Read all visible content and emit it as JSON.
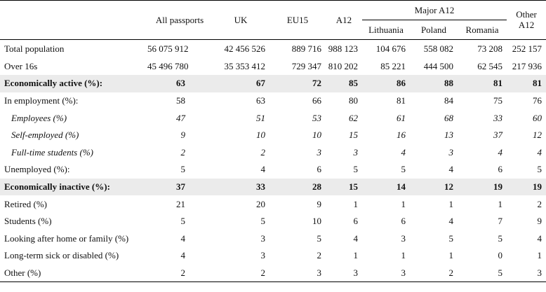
{
  "headers": {
    "all": "All passports",
    "uk": "UK",
    "eu15": "EU15",
    "a12": "A12",
    "major_a12": "Major A12",
    "lithuania": "Lithuania",
    "poland": "Poland",
    "romania": "Romania",
    "other_line1": "Other",
    "other_line2": "A12"
  },
  "rows": [
    {
      "label": "Total population",
      "values": [
        "56 075 912",
        "42 456 526",
        "889 716",
        "988 123",
        "104 676",
        "558 082",
        "73 208",
        "252 157"
      ]
    },
    {
      "label": "Over 16s",
      "values": [
        "45 496 780",
        "35 353 412",
        "729 347",
        "810 202",
        "85 221",
        "444 500",
        "62 545",
        "217 936"
      ]
    },
    {
      "label": "Economically active (%):",
      "values": [
        "63",
        "67",
        "72",
        "85",
        "86",
        "88",
        "81",
        "81"
      ]
    },
    {
      "label": "In employment (%):",
      "values": [
        "58",
        "63",
        "66",
        "80",
        "81",
        "84",
        "75",
        "76"
      ]
    },
    {
      "label": "Employees (%)",
      "values": [
        "47",
        "51",
        "53",
        "62",
        "61",
        "68",
        "33",
        "60"
      ]
    },
    {
      "label": "Self-employed (%)",
      "values": [
        "9",
        "10",
        "10",
        "15",
        "16",
        "13",
        "37",
        "12"
      ]
    },
    {
      "label": "Full-time students (%)",
      "values": [
        "2",
        "2",
        "3",
        "3",
        "4",
        "3",
        "4",
        "4"
      ]
    },
    {
      "label": "Unemployed (%):",
      "values": [
        "5",
        "4",
        "6",
        "5",
        "5",
        "4",
        "6",
        "5"
      ]
    },
    {
      "label": "Economically inactive (%):",
      "values": [
        "37",
        "33",
        "28",
        "15",
        "14",
        "12",
        "19",
        "19"
      ]
    },
    {
      "label": "Retired (%)",
      "values": [
        "21",
        "20",
        "9",
        "1",
        "1",
        "1",
        "1",
        "2"
      ]
    },
    {
      "label": "Students (%)",
      "values": [
        "5",
        "5",
        "10",
        "6",
        "6",
        "4",
        "7",
        "9"
      ]
    },
    {
      "label": "Looking after home or family (%)",
      "values": [
        "4",
        "3",
        "5",
        "4",
        "3",
        "5",
        "5",
        "4"
      ]
    },
    {
      "label": "Long-term sick or disabled (%)",
      "values": [
        "4",
        "3",
        "2",
        "1",
        "1",
        "1",
        "0",
        "1"
      ]
    },
    {
      "label": "Other (%)",
      "values": [
        "2",
        "2",
        "3",
        "3",
        "3",
        "2",
        "5",
        "3"
      ]
    }
  ]
}
